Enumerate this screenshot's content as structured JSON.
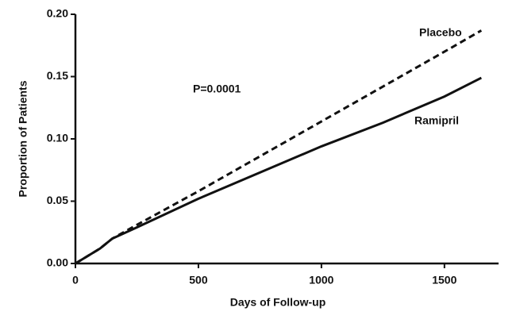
{
  "chart_data": {
    "type": "line",
    "x_label": "Days of Follow-up",
    "y_label": "Proportion of Patients",
    "annotations": [
      "P=0.0001"
    ],
    "x": [
      0,
      100,
      150,
      250,
      500,
      750,
      1000,
      1250,
      1500,
      1650
    ],
    "series": [
      {
        "name": "Placebo",
        "color": "#111111",
        "line_style": "dashed",
        "values": [
          0,
          0.012,
          0.02,
          0.031,
          0.058,
          0.086,
          0.114,
          0.142,
          0.17,
          0.187
        ]
      },
      {
        "name": "Ramipril",
        "color": "#111111",
        "line_style": "solid",
        "values": [
          0,
          0.012,
          0.02,
          0.029,
          0.052,
          0.073,
          0.094,
          0.113,
          0.134,
          0.149
        ]
      }
    ],
    "xlim": [
      0,
      1720
    ],
    "xticks": [
      0,
      500,
      1000,
      1500
    ],
    "ylim": [
      0,
      0.2
    ],
    "yticks": [
      {
        "value": 0,
        "label": "0.00"
      },
      {
        "value": 0.05,
        "label": "0.05"
      },
      {
        "value": 0.1,
        "label": "0.10"
      },
      {
        "value": 0.15,
        "label": "0.15"
      },
      {
        "value": 0.2,
        "label": "0.20"
      }
    ],
    "grid": false
  }
}
